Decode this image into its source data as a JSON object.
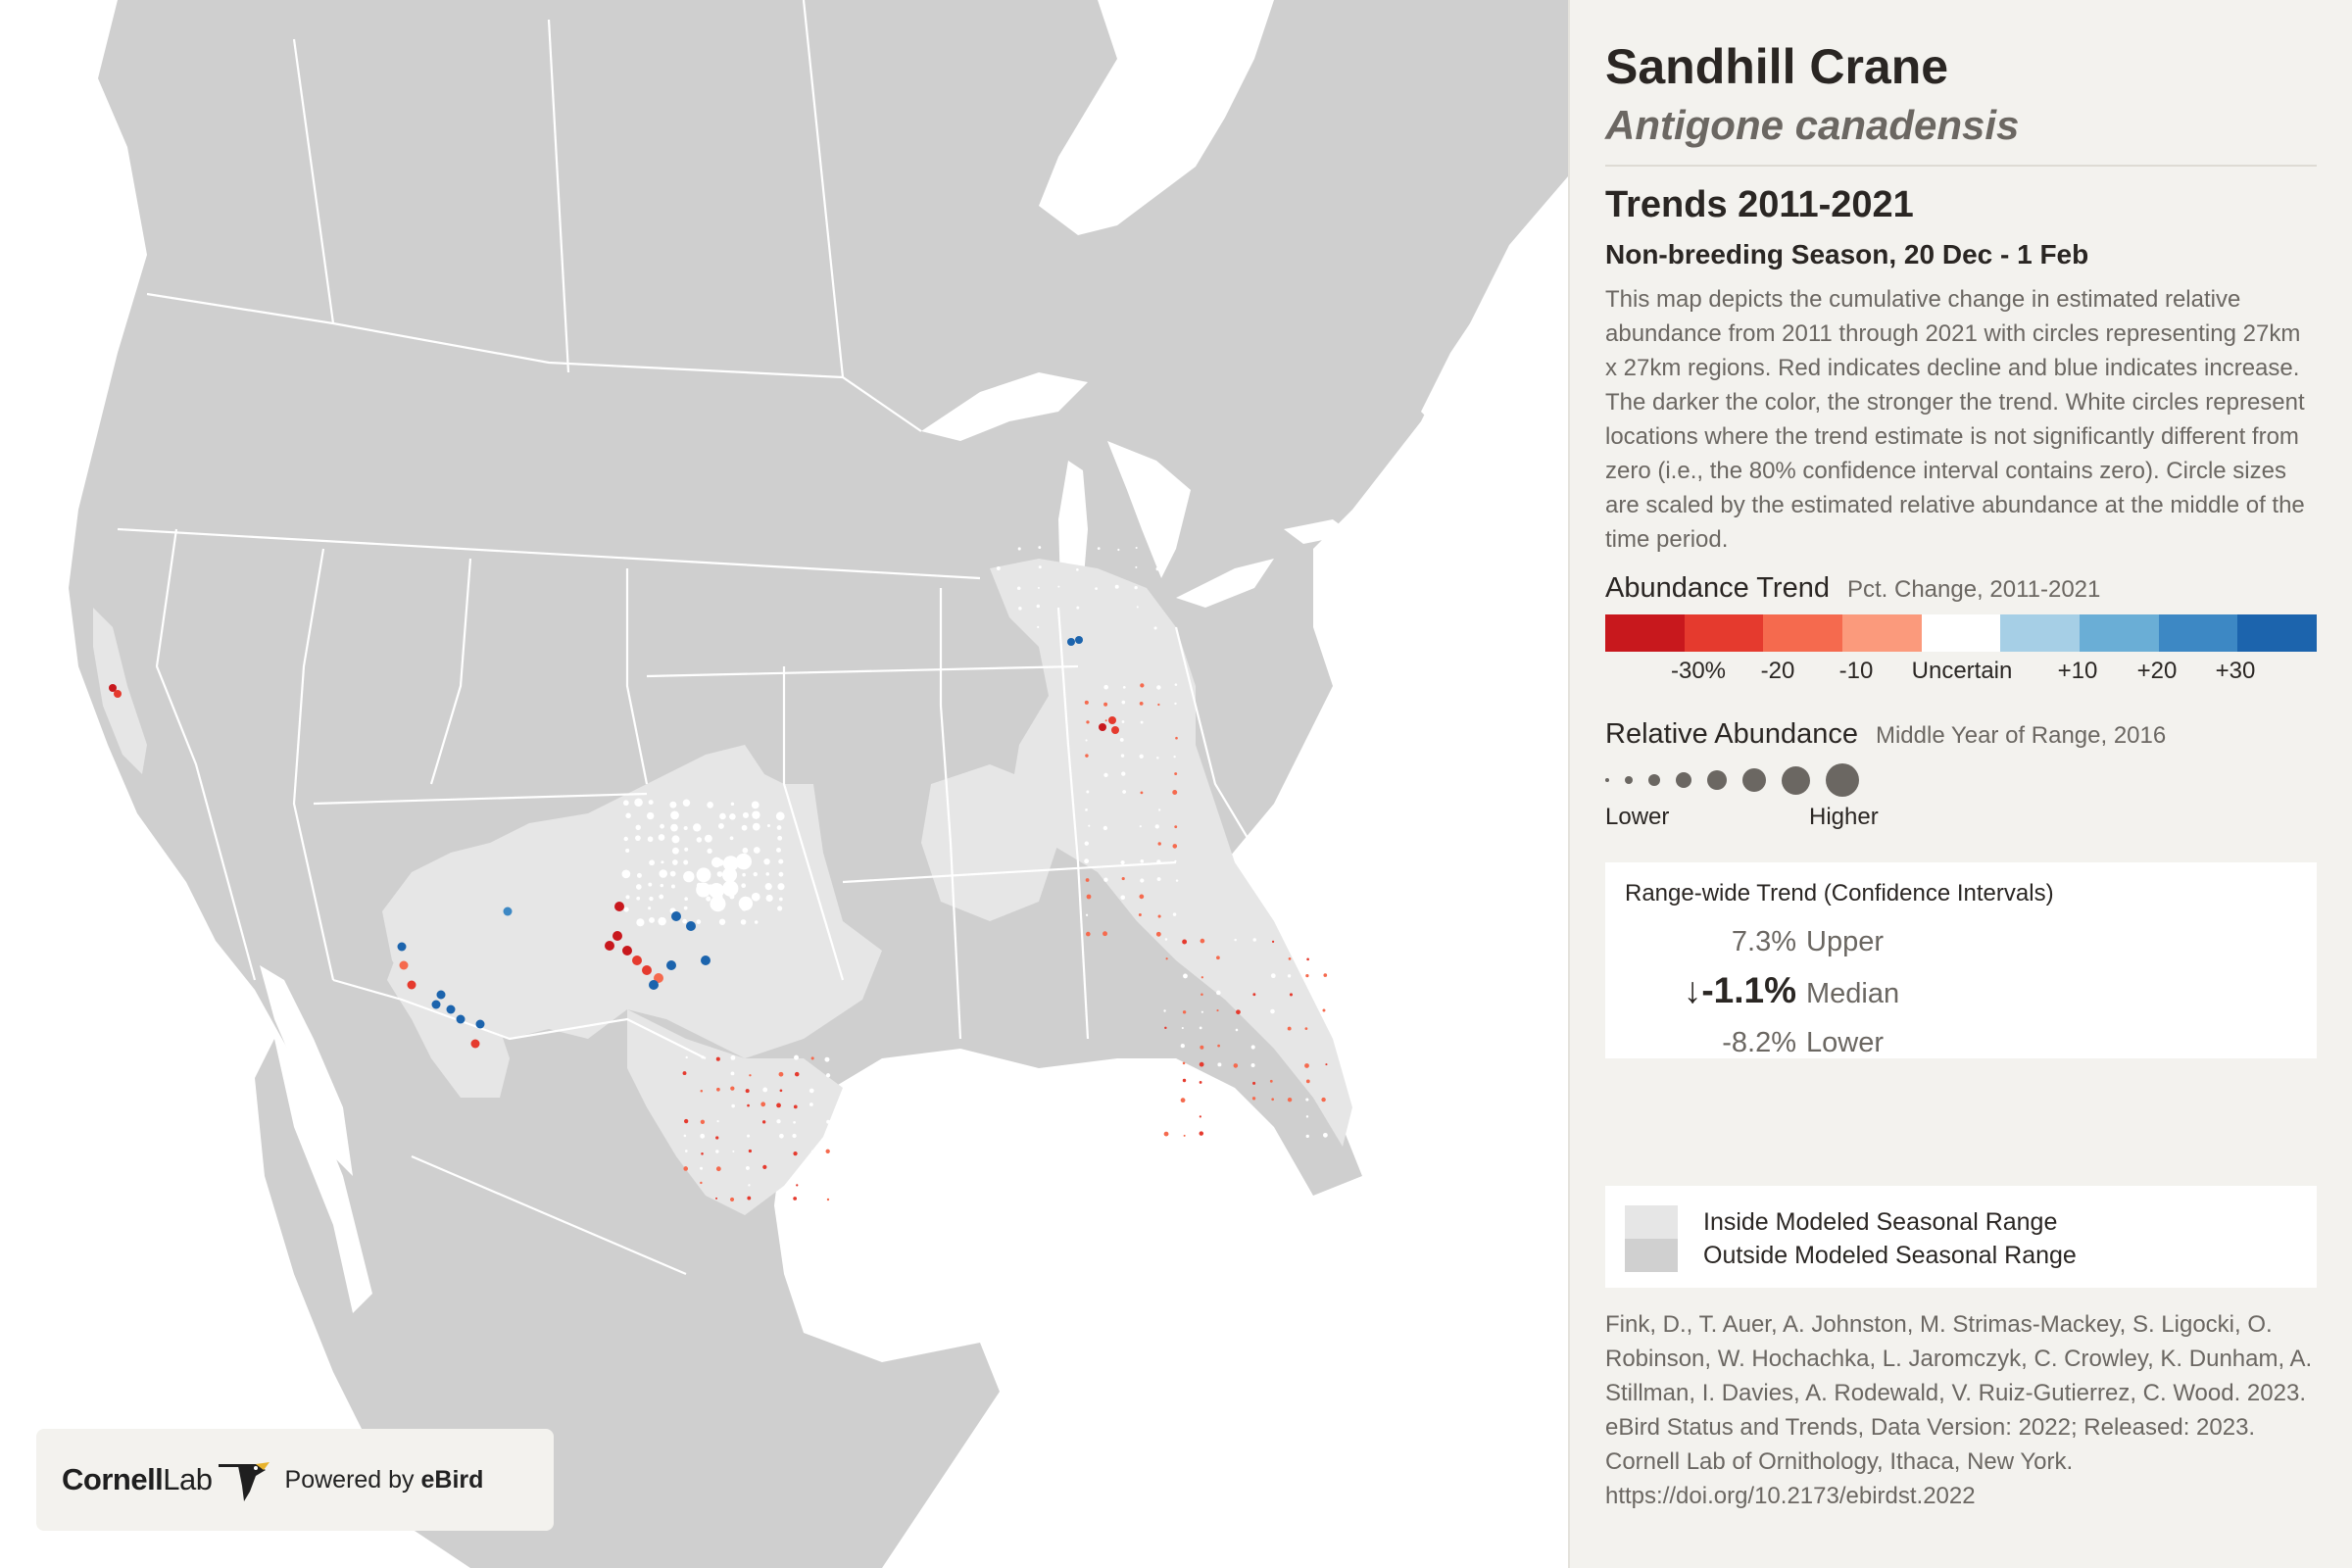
{
  "species": {
    "common_name": "Sandhill Crane",
    "scientific_name": "Antigone canadensis"
  },
  "trends": {
    "title": "Trends 2011-2021",
    "season": "Non-breeding Season, 20 Dec - 1 Feb",
    "description": "This map depicts the cumulative change in estimated relative abundance from 2011 through 2021 with circles representing 27km x 27km regions. Red indicates decline and blue indicates increase. The darker the color, the stronger the trend. White circles represent locations where the trend estimate is not significantly different from zero (i.e., the 80% confidence interval contains zero). Circle sizes are scaled by the estimated relative abundance at the middle of the time period."
  },
  "abundance_trend_legend": {
    "heading": "Abundance Trend",
    "subheading": "Pct. Change, 2011-2021",
    "colors": [
      "#c8181d",
      "#e53a2e",
      "#f56a4e",
      "#fb9a7c",
      "#ffffff",
      "#a6cfe6",
      "#6aaed6",
      "#3d88c4",
      "#1c64ad"
    ],
    "labels": {
      "l30": "-30%",
      "l20": "-20",
      "l10": "-10",
      "uncertain": "Uncertain",
      "p10": "+10",
      "p20": "+20",
      "p30": "+30"
    }
  },
  "relative_abundance_legend": {
    "heading": "Relative Abundance",
    "subheading": "Middle Year of Range, 2016",
    "low_label": "Lower",
    "high_label": "Higher",
    "dot_color": "#6b6762"
  },
  "range_wide_trend": {
    "title": "Range-wide Trend (Confidence Intervals)",
    "upper_value": "7.3%",
    "upper_label": "Upper",
    "median_arrow": "↓",
    "median_value": "-1.1%",
    "median_label": "Median",
    "lower_value": "-8.2%",
    "lower_label": "Lower"
  },
  "range_key": {
    "inside_label": "Inside Modeled Seasonal Range",
    "inside_color": "#e6e6e6",
    "outside_label": "Outside Modeled Seasonal Range",
    "outside_color": "#d0d0d0"
  },
  "citation": "Fink, D., T. Auer, A. Johnston, M. Strimas-Mackey, S. Ligocki, O. Robinson, W. Hochachka, L. Jaromczyk, C. Crowley, K. Dunham, A. Stillman, I. Davies, A. Rodewald, V. Ruiz-Gutierrez, C. Wood. 2023. eBird Status and Trends, Data Version: 2022; Released: 2023. Cornell Lab of Ornithology, Ithaca, New York. https://doi.org/10.2173/ebirdst.2022",
  "logo": {
    "cornell": "Cornell",
    "lab": "Lab",
    "powered": "Powered by",
    "ebird": "eBird"
  },
  "map_colors": {
    "land": "#cfcfcf",
    "water": "#ffffff",
    "range": "#e6e6e6",
    "border": "#ffffff"
  }
}
